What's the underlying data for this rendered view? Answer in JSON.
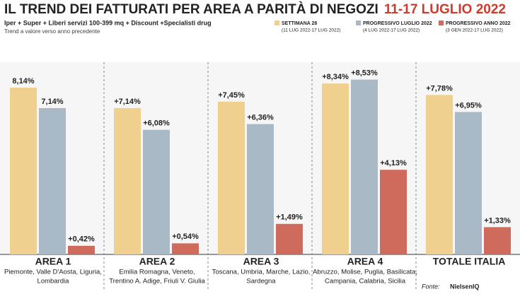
{
  "chart_data": {
    "type": "bar",
    "title": "IL TREND DEI FATTURATI PER AREA A PARITÀ DI NEGOZI",
    "title_dates": "11-17 LUGLIO 2022",
    "subtitle": "Iper + Super + Liberi servizi 100-399 mq + Discount +Specialisti drug",
    "subtitle2": "Trend a valore verso anno precedente",
    "categories": [
      "AREA 1",
      "AREA 2",
      "AREA 3",
      "AREA 4",
      "TOTALE ITALIA"
    ],
    "regions": [
      [
        "Piemonte, Valle D'Aosta, Liguria,",
        "Lombardia"
      ],
      [
        "Emilia Romagna, Veneto,",
        "Trentino A. Adige, Friuli V. Giulia"
      ],
      [
        "Toscana, Umbria, Marche, Lazio,",
        "Sardegna"
      ],
      [
        "Abruzzo, Molise, Puglia, Basilicata,",
        "Campania, Calabria, Sicilia"
      ],
      []
    ],
    "series": [
      {
        "name": "SETTIMANA 28",
        "period": "(11 LUG 2022-17 LUG 2022)",
        "color": "#efd08f",
        "values": [
          8.14,
          7.14,
          7.45,
          8.34,
          7.78
        ],
        "value_labels": [
          "8,14%",
          "+7,14%",
          "+7,45%",
          "+8,34%",
          "+7,78%"
        ]
      },
      {
        "name": "PROGRESSIVO LUGLIO 2022",
        "period": "(4 LUG 2022-17 LUG 2022)",
        "color": "#a9bac6",
        "values": [
          7.14,
          6.08,
          6.36,
          8.53,
          6.95
        ],
        "value_labels": [
          "7,14%",
          "+6,08%",
          "+6,36%",
          "+8,53%",
          "+6,95%"
        ]
      },
      {
        "name": "PROGRESSIVO ANNO 2022",
        "period": "(3 GEN 2022-17 LUG 2022)",
        "color": "#cf6b5c",
        "values": [
          0.42,
          0.54,
          1.49,
          4.13,
          1.33
        ],
        "value_labels": [
          "+0,42%",
          "+0,54%",
          "+1,49%",
          "+4,13%",
          "+1,33%"
        ]
      }
    ],
    "source": "Fonte:",
    "source_name": "NielsenIQ"
  }
}
